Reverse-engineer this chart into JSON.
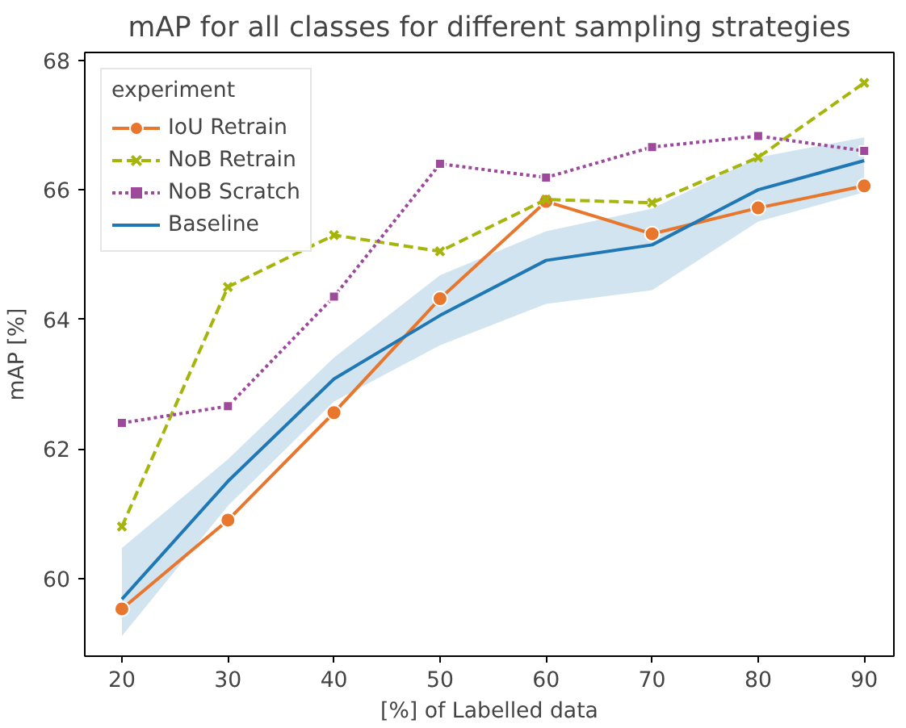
{
  "chart_data": {
    "type": "line",
    "title": "mAP for all classes for different sampling strategies",
    "xlabel": "[%] of Labelled data",
    "ylabel": "mAP [%]",
    "legend_title": "experiment",
    "legend": "top left",
    "grid": false,
    "x": [
      20,
      30,
      40,
      50,
      60,
      70,
      80,
      90
    ],
    "xlim": [
      16.5,
      92.8
    ],
    "xticks": [
      20,
      30,
      40,
      50,
      60,
      70,
      80,
      90
    ],
    "ylim": [
      58.8,
      68.12
    ],
    "yticks": [
      60,
      62,
      64,
      66,
      68
    ],
    "series": [
      {
        "name": "IoU Retrain",
        "color": "#e8762c",
        "marker": "circle",
        "line_style": "solid",
        "values": [
          59.53,
          60.9,
          62.56,
          64.32,
          65.82,
          65.32,
          65.72,
          66.06
        ]
      },
      {
        "name": "NoB Retrain",
        "color": "#a5b50c",
        "marker": "cross",
        "line_style": "dashed",
        "values": [
          60.8,
          64.5,
          65.3,
          65.05,
          65.85,
          65.8,
          66.5,
          67.65
        ]
      },
      {
        "name": "NoB Scratch",
        "color": "#9e4a9c",
        "marker": "square",
        "line_style": "dotted",
        "values": [
          62.4,
          62.66,
          64.35,
          66.4,
          66.19,
          66.66,
          66.83,
          66.6
        ]
      },
      {
        "name": "Baseline",
        "color": "#1f77b4",
        "marker": "none",
        "line_style": "solid",
        "values": [
          59.68,
          61.5,
          63.08,
          64.06,
          64.91,
          65.15,
          66.0,
          66.45
        ],
        "lower": [
          59.11,
          61.12,
          62.73,
          63.6,
          64.24,
          64.45,
          65.51,
          65.96
        ],
        "upper": [
          60.47,
          61.84,
          63.41,
          64.68,
          65.36,
          65.71,
          66.5,
          66.81
        ]
      }
    ]
  }
}
